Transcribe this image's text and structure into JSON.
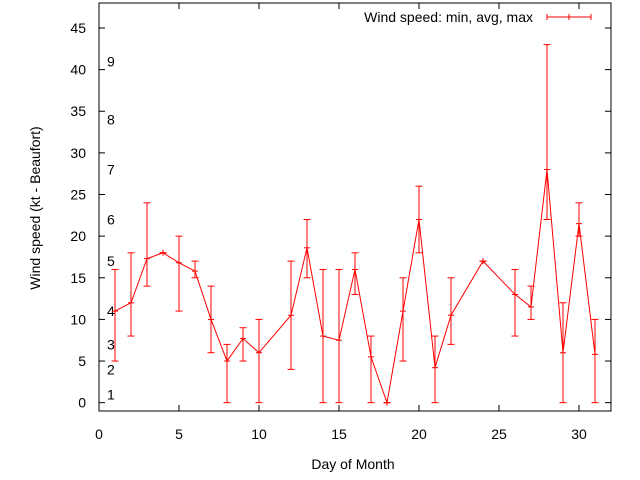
{
  "chart_data": {
    "type": "line",
    "xlabel": "Day of Month",
    "ylabel": "Wind speed (kt - Beaufort)",
    "xlim": [
      0,
      32
    ],
    "ylim": [
      -1,
      48
    ],
    "xticks": [
      0,
      5,
      10,
      15,
      20,
      25,
      30
    ],
    "yticks": [
      0,
      5,
      10,
      15,
      20,
      25,
      30,
      35,
      40,
      45
    ],
    "grid": false,
    "legend_position": "top-right",
    "colors": {
      "series": "#ff0000",
      "axis": "#000000",
      "background": "#ffffff"
    },
    "beaufort_labels": [
      {
        "label": "1",
        "y": 1
      },
      {
        "label": "2",
        "y": 4
      },
      {
        "label": "3",
        "y": 7
      },
      {
        "label": "4",
        "y": 11
      },
      {
        "label": "5",
        "y": 17
      },
      {
        "label": "6",
        "y": 22
      },
      {
        "label": "7",
        "y": 28
      },
      {
        "label": "8",
        "y": 34
      },
      {
        "label": "9",
        "y": 41
      }
    ],
    "series": [
      {
        "name": "Wind speed: min, avg, max",
        "x": [
          1,
          2,
          3,
          4,
          5,
          6,
          7,
          8,
          9,
          10,
          12,
          13,
          14,
          15,
          16,
          17,
          18,
          19,
          20,
          21,
          22,
          24,
          26,
          27,
          28,
          29,
          30,
          31
        ],
        "avg": [
          11,
          12,
          17.3,
          18,
          16.8,
          15.8,
          10,
          5,
          7.7,
          6,
          10.5,
          18.6,
          8,
          7.5,
          16,
          5.5,
          0,
          11,
          22,
          4.2,
          10.5,
          17,
          13,
          11.5,
          28,
          6,
          21.5,
          5.8
        ],
        "min": [
          5,
          8,
          14,
          18,
          11,
          15,
          6,
          0,
          5,
          0,
          4,
          15,
          0,
          0,
          13,
          0,
          0,
          5,
          18,
          0,
          7,
          17,
          8,
          10,
          22,
          0,
          20,
          0
        ],
        "max": [
          16,
          18,
          24,
          18,
          20,
          17,
          14,
          7,
          9,
          10,
          17,
          22,
          16,
          16,
          18,
          8,
          0,
          15,
          26,
          8,
          15,
          17,
          16,
          14,
          43,
          12,
          24,
          10
        ]
      }
    ]
  }
}
